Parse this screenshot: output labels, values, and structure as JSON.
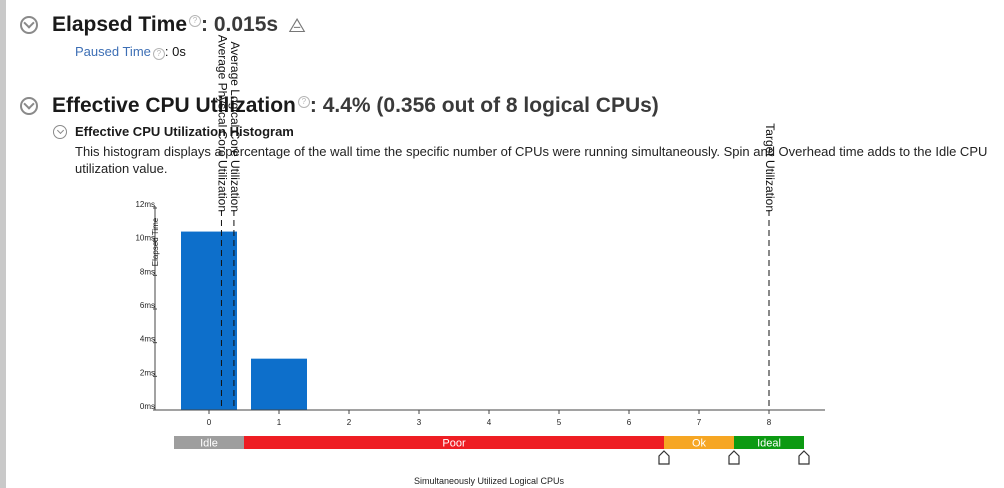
{
  "elapsed": {
    "label": "Elapsed Time",
    "value": ": 0.015s",
    "paused_label": "Paused Time",
    "paused_value": ": 0s"
  },
  "cpu": {
    "label": "Effective CPU Utilization",
    "value": ": 4.4% (0.356 out of 8 logical CPUs)",
    "histogram_title": "Effective CPU Utilization Histogram",
    "description": "This histogram displays a percentage of the wall time the specific number of CPUs were running simultaneously. Spin and Overhead time adds to the Idle CPU utilization value."
  },
  "icons": {
    "collapse": "chevron-down-circle-icon",
    "help": "help-icon",
    "prompt": "command-prompt-icon",
    "marker": "pentagon-marker-icon"
  },
  "chart_data": {
    "type": "bar",
    "categories": [
      "0",
      "1",
      "2",
      "3",
      "4",
      "5",
      "6",
      "7",
      "8"
    ],
    "values": [
      10.6,
      3.05,
      0,
      0,
      0,
      0,
      0,
      0,
      0
    ],
    "xlabel": "Simultaneously Utilized Logical CPUs",
    "ylabel": "Elapsed Time",
    "ylim": [
      0,
      12
    ],
    "yticks": [
      {
        "value": 0,
        "label": "0ms"
      },
      {
        "value": 2,
        "label": "2ms"
      },
      {
        "value": 4,
        "label": "4ms"
      },
      {
        "value": 6,
        "label": "6ms"
      },
      {
        "value": 8,
        "label": "8ms"
      },
      {
        "value": 10,
        "label": "10ms"
      },
      {
        "value": 12,
        "label": "12ms"
      }
    ],
    "bar_color": "#0d6fcb",
    "reference_lines": [
      {
        "label": "Average Physical Core Utilization",
        "x": 0.178
      },
      {
        "label": "Average Logical Core Utilization",
        "x": 0.356
      },
      {
        "label": "Target Utilization",
        "x": 8
      }
    ],
    "bands": [
      {
        "label": "Idle",
        "from": -0.5,
        "to": 0.5,
        "color": "#9e9e9e"
      },
      {
        "label": "Poor",
        "from": 0.5,
        "to": 6.5,
        "color": "#ee1d23"
      },
      {
        "label": "Ok",
        "from": 6.5,
        "to": 7.5,
        "color": "#f6a623"
      },
      {
        "label": "Ideal",
        "from": 7.5,
        "to": 8.5,
        "color": "#0c9a12"
      }
    ],
    "band_markers": [
      6.5,
      7.5,
      8.5
    ]
  }
}
